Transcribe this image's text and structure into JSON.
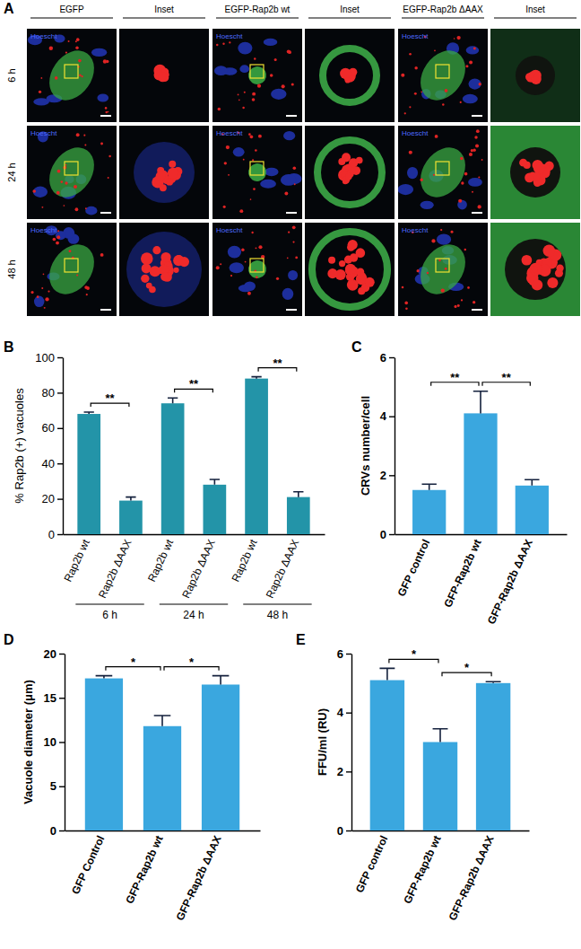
{
  "panel_a": {
    "label": "A",
    "columns": [
      "EGFP",
      "Inset",
      "EGFP-Rap2b wt",
      "Inset",
      "EGFP-Rap2b ΔAAX",
      "Inset"
    ],
    "rows": [
      "6 h",
      "24 h",
      "48 h"
    ],
    "stain": "Hoescht"
  },
  "chart_data": [
    {
      "type": "bar",
      "title": "B",
      "ylabel": "% Rap2b (+) vacuoles",
      "categories": [
        "Rap2b wt",
        "Rap2b ΔAAX",
        "Rap2b wt",
        "Rap2b ΔAAX",
        "Rap2b wt",
        "Rap2b ΔAAX"
      ],
      "values": [
        68,
        19,
        74,
        28,
        88,
        21
      ],
      "errors": [
        1,
        2,
        3,
        3,
        1,
        3
      ],
      "color": "#2394a8",
      "ylim": [
        0,
        100
      ],
      "yticks": [
        0,
        20,
        40,
        60,
        80,
        100
      ],
      "groups": [
        {
          "label": "6 h",
          "categories": [
            0,
            1
          ]
        },
        {
          "label": "24 h",
          "categories": [
            2,
            3
          ]
        },
        {
          "label": "48 h",
          "categories": [
            4,
            5
          ]
        }
      ],
      "annotations": [
        {
          "text": "**",
          "categories": [
            0,
            1
          ]
        },
        {
          "text": "**",
          "categories": [
            2,
            3
          ]
        },
        {
          "text": "**",
          "categories": [
            4,
            5
          ]
        }
      ]
    },
    {
      "type": "bar",
      "title": "C",
      "ylabel": "CRVs number/cell",
      "categories": [
        "GFP control",
        "GFP-Rap2b wt",
        "GFP-Rap2b ΔAAX"
      ],
      "values": [
        1.5,
        4.1,
        1.65
      ],
      "errors": [
        0.2,
        0.75,
        0.2
      ],
      "color": "#3aa7df",
      "ylim": [
        0,
        6
      ],
      "yticks": [
        0,
        2,
        4,
        6
      ],
      "annotations": [
        {
          "text": "**",
          "categories": [
            0,
            1
          ]
        },
        {
          "text": "**",
          "categories": [
            1,
            2
          ]
        }
      ]
    },
    {
      "type": "bar",
      "title": "D",
      "ylabel": "Vacuole diameter (μm)",
      "categories": [
        "GFP Control",
        "GFP-Rap2b wt",
        "GFP-Rap2b ΔAAX"
      ],
      "values": [
        17.2,
        11.8,
        16.5
      ],
      "errors": [
        0.3,
        1.2,
        1.0
      ],
      "color": "#3aa7df",
      "ylim": [
        0,
        20
      ],
      "yticks": [
        0,
        5,
        10,
        15,
        20
      ],
      "annotations": [
        {
          "text": "*",
          "categories": [
            0,
            1
          ]
        },
        {
          "text": "*",
          "categories": [
            1,
            2
          ]
        }
      ]
    },
    {
      "type": "bar",
      "title": "E",
      "ylabel": "FFU/ml (RU)",
      "categories": [
        "GFP control",
        "GFP-Rap2b wt",
        "GFP-Rap2b ΔAAX"
      ],
      "values": [
        5.1,
        3.0,
        5.0
      ],
      "errors": [
        0.4,
        0.45,
        0.05
      ],
      "color": "#3aa7df",
      "ylim": [
        0,
        6
      ],
      "yticks": [
        0,
        2,
        4,
        6
      ],
      "annotations": [
        {
          "text": "*",
          "categories": [
            0,
            1
          ]
        },
        {
          "text": "*",
          "categories": [
            1,
            2
          ]
        }
      ]
    }
  ]
}
